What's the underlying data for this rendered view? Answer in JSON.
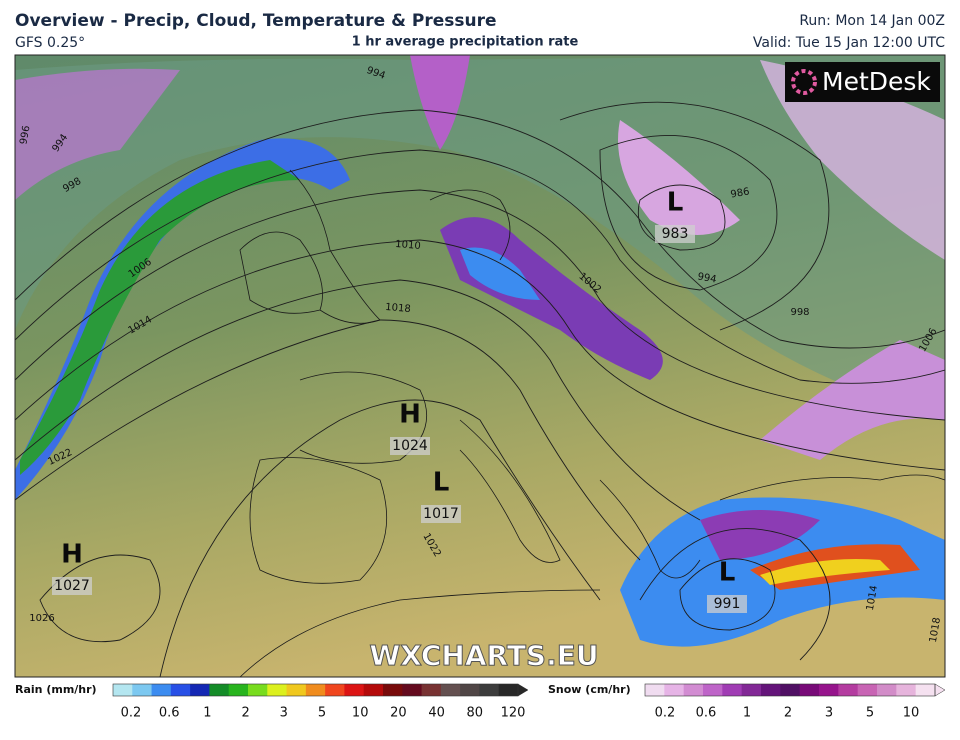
{
  "header": {
    "title": "Overview - Precip, Cloud, Temperature & Pressure",
    "model": "GFS 0.25°",
    "subtitle": "1 hr average precipitation rate",
    "run": "Run: Mon 14 Jan 00Z",
    "valid": "Valid: Tue 15 Jan 12:00 UTC"
  },
  "logo": "MetDesk",
  "watermark": "WXCHARTS.EU",
  "pressure_centers": [
    {
      "symbol": "H",
      "value": "1024"
    },
    {
      "symbol": "L",
      "value": "1017"
    },
    {
      "symbol": "H",
      "value": "1027"
    },
    {
      "symbol": "L",
      "value": "983"
    },
    {
      "symbol": "L",
      "value": "991"
    }
  ],
  "isobar_labels": [
    "994",
    "996",
    "994",
    "998",
    "1006",
    "1014",
    "1022",
    "1026",
    "1010",
    "1018",
    "1002",
    "986",
    "994",
    "998",
    "1006",
    "1022",
    "1014",
    "1018"
  ],
  "legend": {
    "rain": {
      "label": "Rain (mm/hr)",
      "ticks": [
        "0.2",
        "0.6",
        "1",
        "2",
        "3",
        "5",
        "10",
        "20",
        "40",
        "80",
        "120"
      ],
      "colors": [
        "#b4e6f0",
        "#7cc8f0",
        "#3c8cf0",
        "#2850e6",
        "#1428b4",
        "#148c28",
        "#28b41e",
        "#78dc1e",
        "#dcf01e",
        "#f0c81e",
        "#f08c1e",
        "#f0461e",
        "#dc1414",
        "#b40a0a",
        "#780a0a",
        "#640a1e",
        "#783232",
        "#645050",
        "#504646",
        "#3c3c3c",
        "#282828"
      ]
    },
    "snow": {
      "label": "Snow (cm/hr)",
      "ticks": [
        "0.2",
        "0.6",
        "1",
        "2",
        "3",
        "5",
        "10"
      ],
      "colors": [
        "#f0dcf0",
        "#e6b4e6",
        "#d28cd2",
        "#be64c8",
        "#a03cb4",
        "#822896",
        "#64147a",
        "#501064",
        "#780a78",
        "#96148c",
        "#b43ca0",
        "#c864b4",
        "#d28cc8",
        "#e6b4dc",
        "#f5e1f0"
      ]
    }
  }
}
